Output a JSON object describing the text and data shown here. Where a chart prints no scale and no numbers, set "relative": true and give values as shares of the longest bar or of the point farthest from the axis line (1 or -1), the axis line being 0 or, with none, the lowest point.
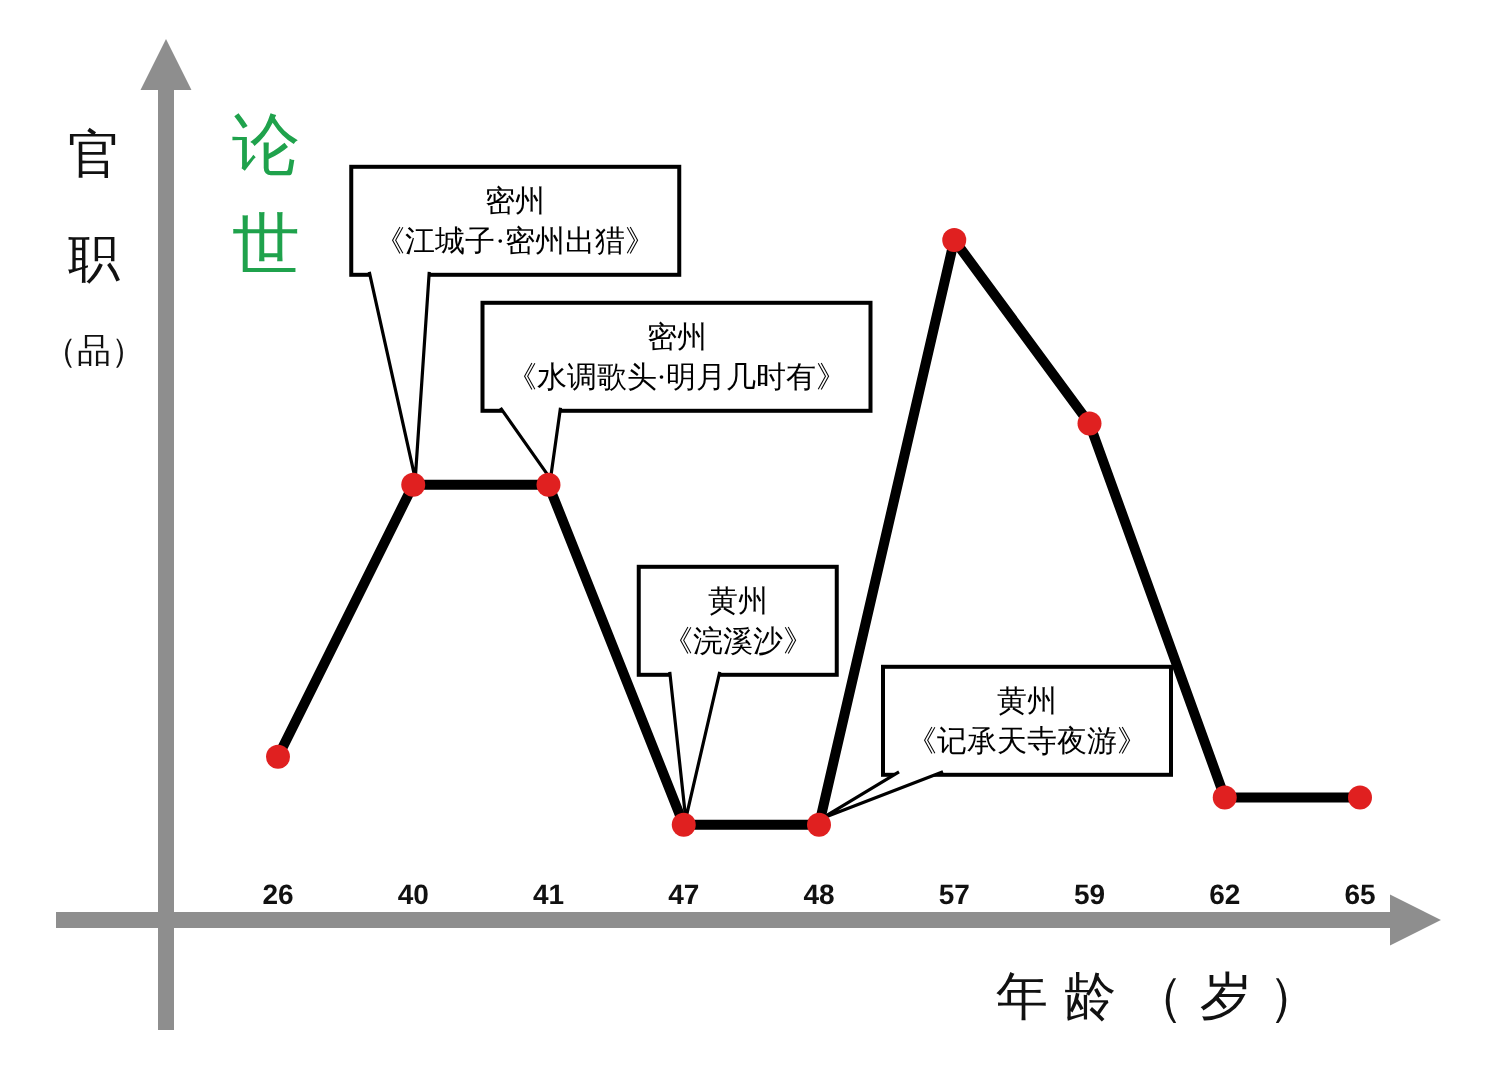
{
  "chart_data": {
    "type": "line",
    "title": "论世",
    "xlabel": "年龄（岁）",
    "ylabel": "官职（品）",
    "categories": [
      "26",
      "40",
      "41",
      "47",
      "48",
      "57",
      "59",
      "62",
      "65"
    ],
    "relative": true,
    "marker": "circle",
    "line_style": "solid",
    "series": [
      {
        "color": "#000000",
        "colors": [
          "#e02020",
          "#e02020",
          "#e02020",
          "#e02020",
          "#e02020",
          "#e02020",
          "#e02020",
          "#e02020",
          "#e02020"
        ],
        "values": [
          0.24,
          0.64,
          0.64,
          0.14,
          0.14,
          1,
          0.73,
          0.18,
          0.18
        ]
      }
    ],
    "annotations": [
      {
        "text": "密州《江城子·密州出猎》",
        "x": "40",
        "y": 0.64
      },
      {
        "text": "密州《水调歌头·明月几时有》",
        "x": "41",
        "y": 0.64
      },
      {
        "text": "黄州《浣溪沙》",
        "x": "47",
        "y": 0.14
      },
      {
        "text": "黄州《记承天寺夜游》",
        "x": "48",
        "y": 0.14
      }
    ]
  }
}
